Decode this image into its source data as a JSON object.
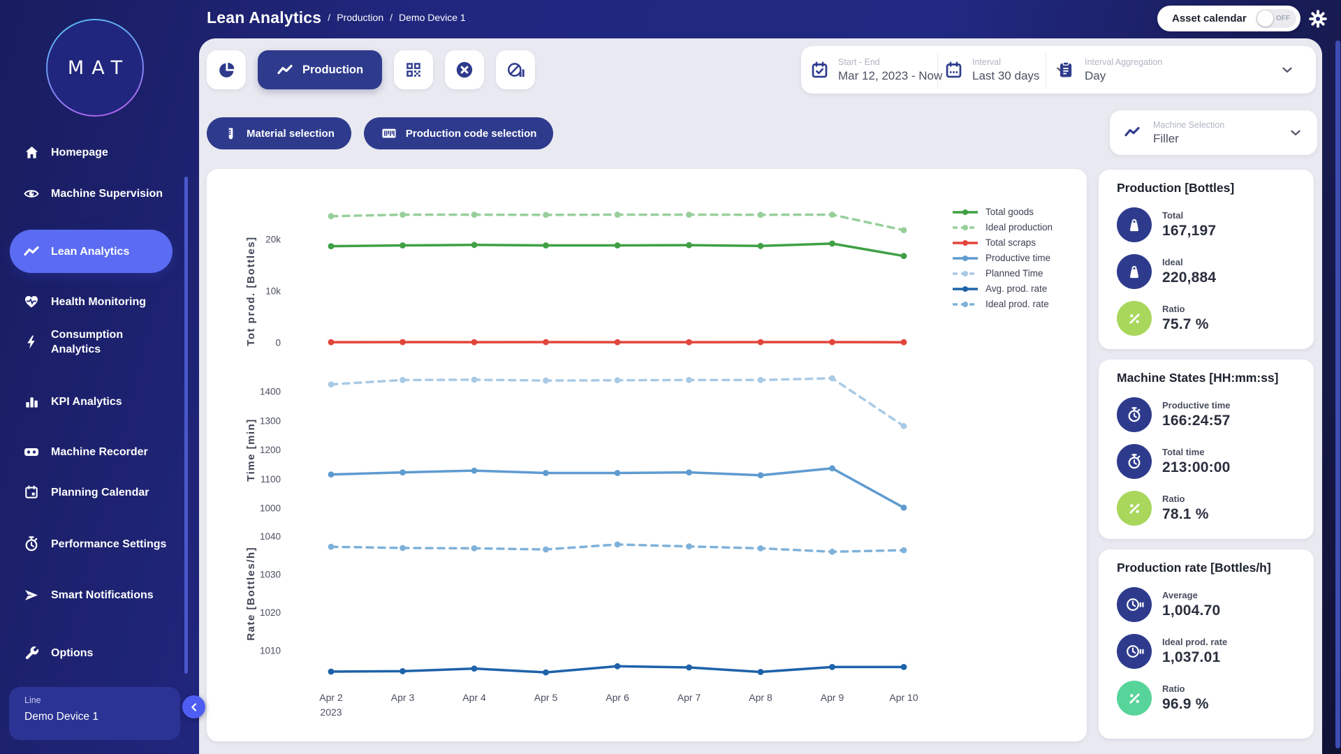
{
  "app": {
    "logo": "MAT"
  },
  "header": {
    "title": "Lean Analytics",
    "sep": "/",
    "breadcrumbs": [
      "Production",
      "Demo Device 1"
    ],
    "asset_calendar": {
      "label": "Asset calendar",
      "state": "OFF"
    }
  },
  "sidebar": {
    "items": [
      {
        "label": "Homepage",
        "icon": "home-icon",
        "active": false
      },
      {
        "label": "Machine Supervision",
        "icon": "eye-icon",
        "active": false
      },
      {
        "label": "Lean Analytics",
        "icon": "trend-icon",
        "active": true
      },
      {
        "label": "Health Monitoring",
        "icon": "heart-pulse-icon",
        "active": false
      },
      {
        "label": "Consumption Analytics",
        "icon": "bolt-icon",
        "active": false
      },
      {
        "label": "KPI Analytics",
        "icon": "bar-chart-icon",
        "active": false
      },
      {
        "label": "Machine Recorder",
        "icon": "recorder-icon",
        "active": false
      },
      {
        "label": "Planning Calendar",
        "icon": "calendar-icon",
        "active": false
      },
      {
        "label": "Performance Settings",
        "icon": "stopwatch-icon",
        "active": false
      },
      {
        "label": "Smart Notifications",
        "icon": "send-icon",
        "active": false
      },
      {
        "label": "Options",
        "icon": "wrench-icon",
        "active": false
      }
    ],
    "footer": {
      "label": "Line",
      "value": "Demo Device 1"
    }
  },
  "toolbar": {
    "tabs": [
      {
        "icon": "pie-icon",
        "label": "",
        "active": false
      },
      {
        "icon": "trend-icon",
        "label": "Production",
        "active": true
      },
      {
        "icon": "qr-icon",
        "label": "",
        "active": false
      },
      {
        "icon": "x-circle-icon",
        "label": "",
        "active": false
      },
      {
        "icon": "gauge-icon",
        "label": "",
        "active": false
      }
    ],
    "filters": [
      {
        "icon": "material-icon",
        "label": "Material selection"
      },
      {
        "icon": "barcode-icon",
        "label": "Production code selection"
      }
    ],
    "date_controls": [
      {
        "icon": "calendar-check-icon",
        "label": "Start - End",
        "value": "Mar 12, 2023 - Now",
        "chevron": false
      },
      {
        "icon": "calendar-dots-icon",
        "label": "Interval",
        "value": "Last 30 days",
        "chevron": true
      },
      {
        "icon": "clipboard-icon",
        "label": "Interval Aggregation",
        "value": "Day",
        "chevron": true
      }
    ],
    "machine_selection": {
      "label": "Machine Selection",
      "value": "Filler"
    }
  },
  "panels": [
    {
      "title": "Production [Bottles]",
      "rows": [
        {
          "icon": "weight-icon",
          "icon_bg": "#2e3b8d",
          "label": "Total",
          "value": "167,197"
        },
        {
          "icon": "weight-icon",
          "icon_bg": "#2e3b8d",
          "label": "Ideal",
          "value": "220,884"
        },
        {
          "icon": "percent-icon",
          "icon_bg": "#a8d75c",
          "label": "Ratio",
          "value": "75.7 %"
        }
      ]
    },
    {
      "title": "Machine States [HH:mm:ss]",
      "rows": [
        {
          "icon": "stopwatch-icon",
          "icon_bg": "#2e3b8d",
          "label": "Productive time",
          "value": "166:24:57"
        },
        {
          "icon": "stopwatch-icon",
          "icon_bg": "#2e3b8d",
          "label": "Total time",
          "value": "213:00:00"
        },
        {
          "icon": "percent-icon",
          "icon_bg": "#a8d75c",
          "label": "Ratio",
          "value": "78.1 %"
        }
      ]
    },
    {
      "title": "Production rate [Bottles/h]",
      "rows": [
        {
          "icon": "clock-speed-icon",
          "icon_bg": "#2e3b8d",
          "label": "Average",
          "value": "1,004.70"
        },
        {
          "icon": "clock-speed-icon",
          "icon_bg": "#2e3b8d",
          "label": "Ideal prod. rate",
          "value": "1,037.01"
        },
        {
          "icon": "percent-icon",
          "icon_bg": "#57d49a",
          "label": "Ratio",
          "value": "96.9 %"
        }
      ]
    }
  ],
  "chart_data": {
    "type": "line",
    "categories": [
      "Apr 2",
      "Apr 3",
      "Apr 4",
      "Apr 5",
      "Apr 6",
      "Apr 7",
      "Apr 8",
      "Apr 9",
      "Apr 10"
    ],
    "x_year_label": "2023",
    "grid": false,
    "legend_position": "right",
    "subplots": [
      {
        "ylabel": "Tot prod. [Bottles]",
        "ylim": [
          -1500,
          26500
        ],
        "yticks": [
          {
            "value": 0,
            "label": "0"
          },
          {
            "value": 10000,
            "label": "10k"
          },
          {
            "value": 20000,
            "label": "20k"
          }
        ],
        "series": [
          {
            "name": "Total goods",
            "color": "#3fa044",
            "dashed": false,
            "values": [
              18700,
              18850,
              18950,
              18850,
              18850,
              18900,
              18750,
              19200,
              16800
            ]
          },
          {
            "name": "Ideal production",
            "color": "#97cf9a",
            "dashed": true,
            "values": [
              24500,
              24800,
              24800,
              24750,
              24800,
              24800,
              24780,
              24800,
              21800
            ]
          },
          {
            "name": "Total scraps",
            "color": "#e2453b",
            "dashed": false,
            "values": [
              120,
              130,
              125,
              130,
              120,
              125,
              130,
              140,
              110
            ]
          }
        ]
      },
      {
        "ylabel": "Time [min]",
        "ylim": [
          950,
          1480
        ],
        "yticks": [
          {
            "value": 1000,
            "label": "1000"
          },
          {
            "value": 1100,
            "label": "1100"
          },
          {
            "value": 1200,
            "label": "1200"
          },
          {
            "value": 1300,
            "label": "1300"
          },
          {
            "value": 1400,
            "label": "1400"
          }
        ],
        "series": [
          {
            "name": "Productive time",
            "color": "#5f9bd0",
            "dashed": false,
            "values": [
              1116,
              1123,
              1129,
              1121,
              1121,
              1123,
              1113,
              1137,
              1002
            ]
          },
          {
            "name": "Planned Time",
            "color": "#a9cae6",
            "dashed": true,
            "values": [
              1425,
              1440,
              1441,
              1438,
              1439,
              1440,
              1440,
              1446,
              1282
            ]
          }
        ]
      },
      {
        "ylabel": "Rate [Bottles/h]",
        "ylim": [
          1001,
          1043
        ],
        "yticks": [
          {
            "value": 1010,
            "label": "1010"
          },
          {
            "value": 1020,
            "label": "1020"
          },
          {
            "value": 1030,
            "label": "1030"
          },
          {
            "value": 1040,
            "label": "1040"
          }
        ],
        "series": [
          {
            "name": "Avg. prod. rate",
            "color": "#1e62a9",
            "dashed": false,
            "values": [
              1004.5,
              1004.6,
              1005.3,
              1004.3,
              1005.9,
              1005.6,
              1004.4,
              1005.7,
              1005.7
            ]
          },
          {
            "name": "Ideal prod. rate",
            "color": "#7fb2da",
            "dashed": true,
            "values": [
              1037.3,
              1037.0,
              1036.9,
              1036.6,
              1037.9,
              1037.4,
              1036.9,
              1036.0,
              1036.4
            ]
          }
        ]
      }
    ],
    "legend": [
      "Total goods",
      "Ideal production",
      "Total scraps",
      "Productive time",
      "Planned Time",
      "Avg. prod. rate",
      "Ideal prod. rate"
    ]
  }
}
